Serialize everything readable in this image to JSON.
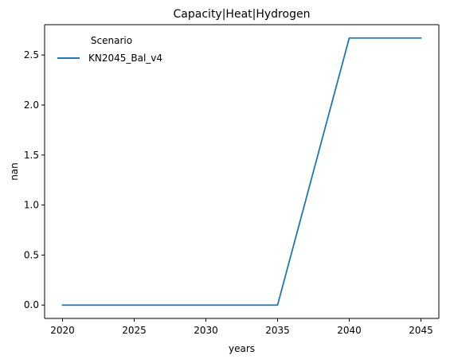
{
  "chart_data": {
    "type": "line",
    "title": "Capacity|Heat|Hydrogen",
    "xlabel": "years",
    "ylabel": "nan",
    "x": [
      2020,
      2025,
      2030,
      2035,
      2040,
      2045
    ],
    "series": [
      {
        "name": "KN2045_Bal_v4",
        "values": [
          0.0,
          0.0,
          0.0,
          0.0,
          2.67,
          2.67
        ],
        "color": "#1f77b4"
      }
    ],
    "xticks": [
      "2020",
      "2025",
      "2030",
      "2035",
      "2040",
      "2045"
    ],
    "yticks": [
      "0.0",
      "0.5",
      "1.0",
      "1.5",
      "2.0",
      "2.5"
    ],
    "xlim": [
      2018.75,
      2046.25
    ],
    "ylim": [
      -0.1335,
      2.8035
    ],
    "grid": false,
    "legend": {
      "title": "Scenario",
      "placement": "top-left"
    }
  }
}
